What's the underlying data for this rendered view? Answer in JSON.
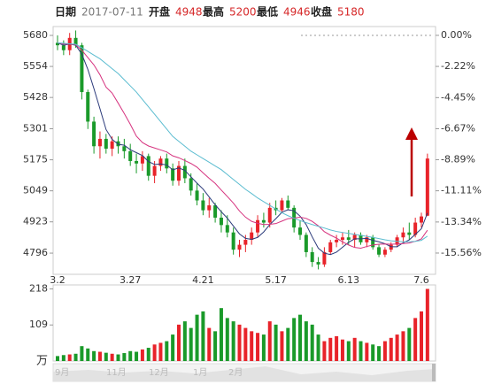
{
  "header": {
    "date_label": "日期",
    "date": "2017-07-11",
    "items": [
      {
        "label": "开盘",
        "value": 4948
      },
      {
        "label": "最高",
        "value": 5200
      },
      {
        "label": "最低",
        "value": 4946
      },
      {
        "label": "收盘",
        "value": 5180
      }
    ]
  },
  "chart_data": {
    "type": "candlestick",
    "categories": [
      "3.2",
      null,
      null,
      null,
      null,
      null,
      null,
      null,
      null,
      null,
      null,
      null,
      "3.27",
      null,
      null,
      null,
      null,
      null,
      null,
      null,
      null,
      null,
      null,
      null,
      "4.21",
      null,
      null,
      null,
      null,
      null,
      null,
      null,
      null,
      null,
      null,
      null,
      "5.17",
      null,
      null,
      null,
      null,
      null,
      null,
      null,
      null,
      null,
      null,
      null,
      "6.13",
      null,
      null,
      null,
      null,
      null,
      null,
      null,
      null,
      null,
      null,
      null,
      "7.6",
      null
    ],
    "ohlc": [
      [
        5650,
        5680,
        5620,
        5640
      ],
      [
        5640,
        5660,
        5600,
        5620
      ],
      [
        5620,
        5690,
        5600,
        5670
      ],
      [
        5670,
        5700,
        5630,
        5640
      ],
      [
        5640,
        5650,
        5420,
        5450
      ],
      [
        5450,
        5460,
        5300,
        5330
      ],
      [
        5330,
        5350,
        5200,
        5230
      ],
      [
        5230,
        5290,
        5180,
        5260
      ],
      [
        5260,
        5280,
        5200,
        5220
      ],
      [
        5220,
        5270,
        5190,
        5250
      ],
      [
        5250,
        5270,
        5200,
        5230
      ],
      [
        5230,
        5260,
        5180,
        5210
      ],
      [
        5210,
        5240,
        5150,
        5170
      ],
      [
        5170,
        5200,
        5120,
        5160
      ],
      [
        5160,
        5210,
        5130,
        5190
      ],
      [
        5190,
        5200,
        5090,
        5110
      ],
      [
        5110,
        5170,
        5080,
        5150
      ],
      [
        5150,
        5190,
        5130,
        5180
      ],
      [
        5180,
        5200,
        5120,
        5140
      ],
      [
        5140,
        5160,
        5070,
        5090
      ],
      [
        5090,
        5170,
        5070,
        5150
      ],
      [
        5150,
        5180,
        5080,
        5100
      ],
      [
        5100,
        5120,
        5030,
        5050
      ],
      [
        5050,
        5080,
        4990,
        5010
      ],
      [
        5010,
        5040,
        4950,
        4970
      ],
      [
        4970,
        5020,
        4940,
        4990
      ],
      [
        4990,
        5000,
        4920,
        4940
      ],
      [
        4940,
        4970,
        4880,
        4910
      ],
      [
        4910,
        4950,
        4860,
        4880
      ],
      [
        4880,
        4900,
        4790,
        4810
      ],
      [
        4810,
        4850,
        4780,
        4830
      ],
      [
        4830,
        4870,
        4800,
        4850
      ],
      [
        4850,
        4900,
        4830,
        4880
      ],
      [
        4880,
        4950,
        4860,
        4930
      ],
      [
        4930,
        4960,
        4900,
        4920
      ],
      [
        4920,
        5000,
        4900,
        4980
      ],
      [
        4980,
        5010,
        4950,
        4970
      ],
      [
        4970,
        5020,
        4960,
        5010
      ],
      [
        5010,
        5030,
        4970,
        4980
      ],
      [
        4980,
        4990,
        4880,
        4900
      ],
      [
        4900,
        4930,
        4850,
        4870
      ],
      [
        4870,
        4880,
        4780,
        4800
      ],
      [
        4800,
        4820,
        4740,
        4760
      ],
      [
        4760,
        4780,
        4730,
        4750
      ],
      [
        4750,
        4820,
        4740,
        4800
      ],
      [
        4800,
        4850,
        4790,
        4840
      ],
      [
        4840,
        4870,
        4820,
        4850
      ],
      [
        4850,
        4880,
        4830,
        4860
      ],
      [
        4860,
        4890,
        4830,
        4850
      ],
      [
        4850,
        4880,
        4820,
        4870
      ],
      [
        4870,
        4880,
        4830,
        4840
      ],
      [
        4840,
        4870,
        4820,
        4860
      ],
      [
        4860,
        4870,
        4810,
        4820
      ],
      [
        4820,
        4830,
        4780,
        4790
      ],
      [
        4790,
        4820,
        4780,
        4810
      ],
      [
        4810,
        4840,
        4800,
        4830
      ],
      [
        4830,
        4870,
        4820,
        4860
      ],
      [
        4860,
        4900,
        4840,
        4880
      ],
      [
        4880,
        4920,
        4850,
        4870
      ],
      [
        4870,
        4940,
        4860,
        4920
      ],
      [
        4920,
        4960,
        4900,
        4945
      ],
      [
        4948,
        5200,
        4946,
        5180
      ]
    ],
    "up_color": "#e8232a",
    "down_color": "#1a9a2a",
    "ma": [
      {
        "color": "#2b3a7a",
        "values": [
          5650,
          5640,
          5645,
          5640,
          5604,
          5542,
          5464,
          5382,
          5298,
          5258,
          5238,
          5234,
          5216,
          5204,
          5192,
          5168,
          5156,
          5158,
          5154,
          5134,
          5142,
          5132,
          5106,
          5080,
          5056,
          5024,
          4992,
          4964,
          4938,
          4906,
          4874,
          4856,
          4852,
          4860,
          4882,
          4912,
          4936,
          4962,
          4972,
          4968,
          4946,
          4912,
          4862,
          4816,
          4796,
          4790,
          4800,
          4820,
          4840,
          4854,
          4854,
          4856,
          4848,
          4842,
          4834,
          4822,
          4822,
          4838,
          4850,
          4872,
          4895,
          4959
        ]
      },
      {
        "color": "#d6337f",
        "values": [
          5650,
          5645,
          5645,
          5642,
          5620,
          5590,
          5560,
          5520,
          5470,
          5446,
          5405,
          5363,
          5319,
          5271,
          5245,
          5231,
          5223,
          5215,
          5207,
          5191,
          5183,
          5172,
          5160,
          5145,
          5122,
          5100,
          5079,
          5052,
          5026,
          4999,
          4967,
          4942,
          4925,
          4917,
          4912,
          4913,
          4916,
          4926,
          4936,
          4938,
          4942,
          4937,
          4925,
          4907,
          4883,
          4869,
          4857,
          4842,
          4829,
          4819,
          4816,
          4823,
          4829,
          4832,
          4833,
          4832,
          4833,
          4835,
          4837,
          4844,
          4854,
          4889
        ]
      },
      {
        "color": "#5bbcd0",
        "values": [
          5650,
          5648,
          5646,
          5644,
          5630,
          5615,
          5600,
          5585,
          5565,
          5545,
          5525,
          5500,
          5475,
          5450,
          5420,
          5390,
          5360,
          5330,
          5300,
          5270,
          5250,
          5230,
          5210,
          5195,
          5180,
          5165,
          5150,
          5135,
          5115,
          5095,
          5075,
          5055,
          5038,
          5020,
          5005,
          4990,
          4975,
          4960,
          4948,
          4938,
          4928,
          4920,
          4912,
          4905,
          4898,
          4890,
          4884,
          4880,
          4876,
          4872,
          4868,
          4864,
          4860,
          4855,
          4850,
          4846,
          4844,
          4842,
          4842,
          4844,
          4848,
          4865
        ]
      }
    ],
    "ylim": [
      4710,
      5716
    ],
    "yticks": [
      5680,
      5554,
      5428,
      5301,
      5175,
      5049,
      4923,
      4796
    ],
    "y2lim": [
      -17.08,
      0.63
    ],
    "y2ticks": [
      {
        "value": 0,
        "label": "0.00%"
      },
      {
        "value": -2.22,
        "label": "-2.22%"
      },
      {
        "value": -4.45,
        "label": "-4.45%"
      },
      {
        "value": -6.67,
        "label": "-6.67%"
      },
      {
        "value": -8.89,
        "label": "-8.89%"
      },
      {
        "value": -11.11,
        "label": "-11.11%"
      },
      {
        "value": -13.34,
        "label": "-13.34%"
      },
      {
        "value": -15.56,
        "label": "-15.56%"
      }
    ],
    "volume": [
      15,
      18,
      20,
      22,
      45,
      38,
      30,
      28,
      25,
      22,
      20,
      24,
      30,
      28,
      35,
      40,
      50,
      55,
      60,
      80,
      110,
      120,
      100,
      140,
      150,
      100,
      90,
      160,
      130,
      120,
      110,
      100,
      90,
      85,
      80,
      120,
      110,
      90,
      100,
      130,
      140,
      120,
      110,
      80,
      60,
      70,
      75,
      65,
      60,
      70,
      60,
      55,
      50,
      45,
      60,
      70,
      80,
      90,
      100,
      130,
      150,
      218
    ],
    "vlim": [
      0,
      230
    ],
    "vticks": [
      218,
      109
    ],
    "vol_unit": "万",
    "nav_labels": [
      "9月",
      "11月",
      "12月",
      "1月",
      "2月"
    ]
  }
}
